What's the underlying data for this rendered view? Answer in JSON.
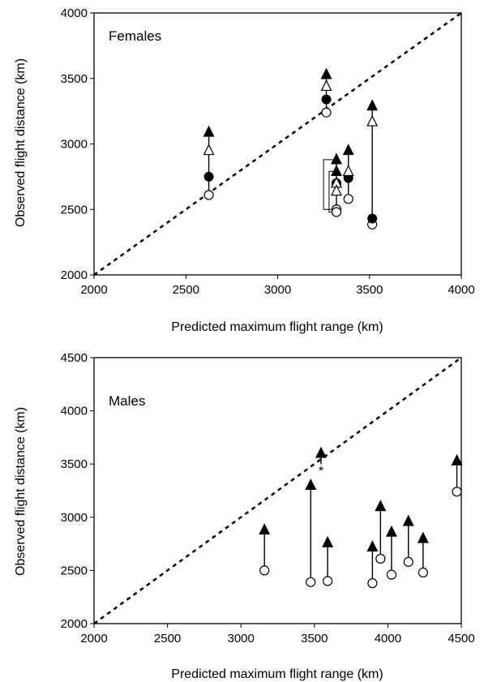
{
  "chart_data": [
    {
      "type": "scatter",
      "panel_label": "Females",
      "xlabel": "Predicted maximum flight range (km)",
      "ylabel": "Observed flight distance (km)",
      "xlim": [
        2000,
        4000
      ],
      "ylim": [
        2000,
        4000
      ],
      "xticks": [
        2000,
        2500,
        3000,
        3500,
        4000
      ],
      "yticks": [
        2000,
        2500,
        3000,
        3500,
        4000
      ],
      "reference_line": {
        "style": "dashed",
        "from": [
          2000,
          2000
        ],
        "to": [
          4000,
          4000
        ]
      },
      "legend": "none",
      "grid": false,
      "series": [
        {
          "marker": "open-circle",
          "x": [
            2625,
            3265,
            3320,
            3320,
            3320,
            3385,
            3515
          ],
          "y": [
            2610,
            3240,
            2500,
            2480,
            2700,
            2580,
            2385
          ]
        },
        {
          "marker": "filled-circle",
          "x": [
            2625,
            3265,
            3320,
            3385,
            3515
          ],
          "y": [
            2750,
            3340,
            2700,
            2740,
            2430
          ]
        },
        {
          "marker": "open-triangle",
          "x": [
            2625,
            3265,
            3320,
            3320,
            3385,
            3515
          ],
          "y": [
            2950,
            3440,
            2700,
            2640,
            2790,
            3170
          ]
        },
        {
          "marker": "filled-triangle",
          "x": [
            2625,
            3265,
            3320,
            3320,
            3385,
            3515
          ],
          "y": [
            3090,
            3530,
            2880,
            2790,
            2950,
            3290
          ]
        }
      ],
      "connectors": [
        {
          "x": 2625,
          "from": 2610,
          "to": 3090
        },
        {
          "x": 3265,
          "from": 3240,
          "to": 3530
        },
        {
          "x": 3320,
          "from": 2480,
          "to": 2880
        },
        {
          "x": 3385,
          "from": 2580,
          "to": 2950
        },
        {
          "x": 3515,
          "from": 2385,
          "to": 3290
        }
      ],
      "brackets": [
        {
          "x": 3320,
          "y1": 2500,
          "y2": 2880,
          "depth": 70
        },
        {
          "x": 3320,
          "y1": 2480,
          "y2": 2790,
          "depth": 40
        }
      ]
    },
    {
      "type": "scatter",
      "panel_label": "Males",
      "xlabel": "Predicted maximum flight range (km)",
      "ylabel": "Observed flight distance (km)",
      "xlim": [
        2000,
        4500
      ],
      "ylim": [
        2000,
        4500
      ],
      "xticks": [
        2000,
        2500,
        3000,
        3500,
        4000,
        4500
      ],
      "yticks": [
        2000,
        2500,
        3000,
        3500,
        4000,
        4500
      ],
      "reference_line": {
        "style": "dashed",
        "from": [
          2000,
          2000
        ],
        "to": [
          4500,
          4500
        ]
      },
      "legend": "none",
      "grid": false,
      "annotation": {
        "text": "*",
        "x": 3545,
        "y": 3440
      },
      "series": [
        {
          "marker": "open-circle",
          "x": [
            3160,
            3475,
            3590,
            3895,
            3950,
            4025,
            4140,
            4240,
            4470
          ],
          "y": [
            2500,
            2390,
            2400,
            2380,
            2610,
            2460,
            2580,
            2480,
            3240
          ]
        },
        {
          "marker": "filled-triangle",
          "x": [
            3160,
            3475,
            3545,
            3590,
            3895,
            3950,
            4025,
            4140,
            4240,
            4470
          ],
          "y": [
            2880,
            3300,
            3600,
            2760,
            2720,
            3100,
            2860,
            2960,
            2800,
            3530
          ]
        }
      ],
      "connectors": [
        {
          "x": 3160,
          "from": 2500,
          "to": 2880
        },
        {
          "x": 3475,
          "from": 2390,
          "to": 3300
        },
        {
          "x": 3545,
          "from": 3500,
          "to": 3600
        },
        {
          "x": 3590,
          "from": 2400,
          "to": 2760
        },
        {
          "x": 3895,
          "from": 2380,
          "to": 2720
        },
        {
          "x": 3950,
          "from": 2610,
          "to": 3100
        },
        {
          "x": 4025,
          "from": 2460,
          "to": 2860
        },
        {
          "x": 4140,
          "from": 2580,
          "to": 2960
        },
        {
          "x": 4240,
          "from": 2480,
          "to": 2800
        },
        {
          "x": 4470,
          "from": 3240,
          "to": 3530
        }
      ]
    }
  ]
}
